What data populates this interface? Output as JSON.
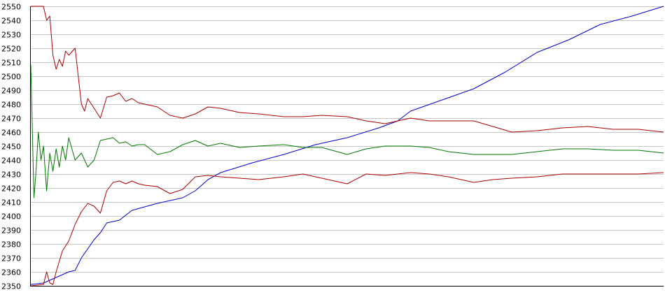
{
  "chart_data": {
    "type": "line",
    "title": "",
    "xlabel": "",
    "ylabel": "",
    "ylim": [
      2350,
      2550
    ],
    "yticks": [
      2350,
      2360,
      2370,
      2380,
      2390,
      2400,
      2410,
      2420,
      2430,
      2440,
      2450,
      2460,
      2470,
      2480,
      2490,
      2500,
      2510,
      2520,
      2530,
      2540,
      2550
    ],
    "xlim": [
      0,
      1
    ],
    "grid": true,
    "grid_color": "#c8c8c8",
    "axis_color": "#000000",
    "series": [
      {
        "color": "#0000cc",
        "x": [
          0,
          0.02,
          0.04,
          0.06,
          0.07,
          0.08,
          0.1,
          0.11,
          0.12,
          0.14,
          0.16,
          0.2,
          0.24,
          0.26,
          0.28,
          0.3,
          0.35,
          0.4,
          0.45,
          0.5,
          0.55,
          0.58,
          0.6,
          0.65,
          0.7,
          0.75,
          0.8,
          0.85,
          0.9,
          0.95,
          1.0
        ],
        "values": [
          2351,
          2352,
          2356,
          2360,
          2361,
          2370,
          2383,
          2388,
          2395,
          2397,
          2404,
          2409,
          2413,
          2418,
          2426,
          2431,
          2438,
          2444,
          2451,
          2456,
          2463,
          2468,
          2475,
          2483,
          2491,
          2503,
          2517,
          2526,
          2537,
          2543,
          2550
        ]
      },
      {
        "color": "#aa0000",
        "x": [
          0,
          0.01,
          0.02,
          0.025,
          0.03,
          0.035,
          0.04,
          0.045,
          0.05,
          0.055,
          0.06,
          0.07,
          0.08,
          0.085,
          0.09,
          0.1,
          0.11,
          0.12,
          0.13,
          0.14,
          0.15,
          0.16,
          0.17,
          0.18,
          0.19,
          0.2,
          0.22,
          0.24,
          0.26,
          0.28,
          0.3,
          0.33,
          0.36,
          0.4,
          0.43,
          0.46,
          0.5,
          0.53,
          0.56,
          0.6,
          0.63,
          0.66,
          0.7,
          0.73,
          0.76,
          0.8,
          0.84,
          0.88,
          0.92,
          0.96,
          1.0
        ],
        "values": [
          2550,
          2550,
          2550,
          2540,
          2543,
          2515,
          2505,
          2512,
          2507,
          2518,
          2515,
          2520,
          2480,
          2475,
          2484,
          2477,
          2470,
          2485,
          2486,
          2488,
          2482,
          2484,
          2481,
          2480,
          2479,
          2478,
          2472,
          2470,
          2473,
          2478,
          2477,
          2474,
          2473,
          2471,
          2471,
          2472,
          2471,
          2468,
          2466,
          2470,
          2468,
          2468,
          2468,
          2464,
          2460,
          2461,
          2463,
          2464,
          2462,
          2462,
          2460
        ]
      },
      {
        "color": "#aa0000",
        "x": [
          0,
          0.02,
          0.025,
          0.03,
          0.035,
          0.04,
          0.05,
          0.06,
          0.07,
          0.08,
          0.09,
          0.1,
          0.11,
          0.12,
          0.13,
          0.14,
          0.15,
          0.16,
          0.17,
          0.18,
          0.2,
          0.22,
          0.24,
          0.26,
          0.28,
          0.3,
          0.33,
          0.36,
          0.4,
          0.43,
          0.46,
          0.5,
          0.53,
          0.56,
          0.6,
          0.63,
          0.66,
          0.7,
          0.73,
          0.76,
          0.8,
          0.84,
          0.88,
          0.92,
          0.96,
          1.0
        ],
        "values": [
          2350,
          2351,
          2360,
          2352,
          2351,
          2360,
          2375,
          2382,
          2394,
          2403,
          2409,
          2407,
          2402,
          2418,
          2424,
          2425,
          2423,
          2425,
          2423,
          2422,
          2421,
          2416,
          2419,
          2428,
          2429,
          2428,
          2427,
          2426,
          2428,
          2430,
          2427,
          2423,
          2430,
          2429,
          2431,
          2430,
          2428,
          2424,
          2426,
          2427,
          2428,
          2430,
          2430,
          2430,
          2430,
          2431
        ]
      },
      {
        "color": "#007700",
        "x": [
          0,
          0.005,
          0.008,
          0.012,
          0.016,
          0.02,
          0.025,
          0.03,
          0.035,
          0.04,
          0.045,
          0.05,
          0.055,
          0.06,
          0.07,
          0.08,
          0.09,
          0.1,
          0.11,
          0.12,
          0.13,
          0.14,
          0.15,
          0.16,
          0.17,
          0.18,
          0.2,
          0.22,
          0.24,
          0.26,
          0.28,
          0.3,
          0.33,
          0.36,
          0.4,
          0.43,
          0.46,
          0.5,
          0.53,
          0.56,
          0.6,
          0.63,
          0.66,
          0.7,
          0.73,
          0.76,
          0.8,
          0.84,
          0.88,
          0.92,
          0.96,
          1.0
        ],
        "values": [
          2508,
          2413,
          2430,
          2460,
          2440,
          2450,
          2418,
          2445,
          2432,
          2448,
          2435,
          2450,
          2440,
          2456,
          2440,
          2445,
          2435,
          2440,
          2454,
          2455,
          2456,
          2452,
          2453,
          2450,
          2451,
          2451,
          2444,
          2446,
          2451,
          2454,
          2450,
          2452,
          2449,
          2450,
          2451,
          2449,
          2449,
          2444,
          2448,
          2450,
          2450,
          2449,
          2446,
          2444,
          2444,
          2444,
          2446,
          2448,
          2448,
          2447,
          2447,
          2445
        ]
      }
    ]
  }
}
